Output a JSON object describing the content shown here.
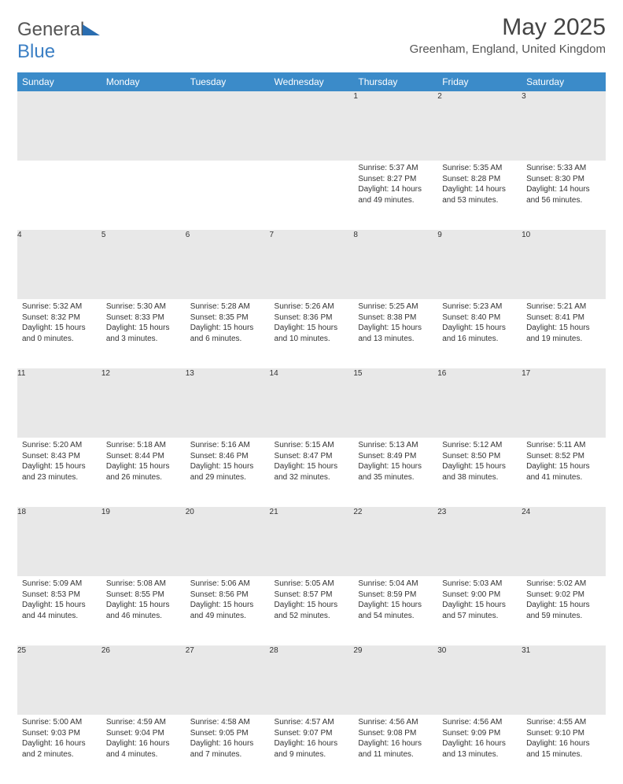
{
  "logo": {
    "word1": "General",
    "word2": "Blue"
  },
  "title": "May 2025",
  "location": "Greenham, England, United Kingdom",
  "colors": {
    "headerBg": "#3b8bc9",
    "rowSep": "#2a6db0",
    "dayBg": "#e8e8e8"
  },
  "weekdays": [
    "Sunday",
    "Monday",
    "Tuesday",
    "Wednesday",
    "Thursday",
    "Friday",
    "Saturday"
  ],
  "weeks": [
    [
      null,
      null,
      null,
      null,
      {
        "n": "1",
        "sr": "Sunrise: 5:37 AM",
        "ss": "Sunset: 8:27 PM",
        "dl": "Daylight: 14 hours and 49 minutes."
      },
      {
        "n": "2",
        "sr": "Sunrise: 5:35 AM",
        "ss": "Sunset: 8:28 PM",
        "dl": "Daylight: 14 hours and 53 minutes."
      },
      {
        "n": "3",
        "sr": "Sunrise: 5:33 AM",
        "ss": "Sunset: 8:30 PM",
        "dl": "Daylight: 14 hours and 56 minutes."
      }
    ],
    [
      {
        "n": "4",
        "sr": "Sunrise: 5:32 AM",
        "ss": "Sunset: 8:32 PM",
        "dl": "Daylight: 15 hours and 0 minutes."
      },
      {
        "n": "5",
        "sr": "Sunrise: 5:30 AM",
        "ss": "Sunset: 8:33 PM",
        "dl": "Daylight: 15 hours and 3 minutes."
      },
      {
        "n": "6",
        "sr": "Sunrise: 5:28 AM",
        "ss": "Sunset: 8:35 PM",
        "dl": "Daylight: 15 hours and 6 minutes."
      },
      {
        "n": "7",
        "sr": "Sunrise: 5:26 AM",
        "ss": "Sunset: 8:36 PM",
        "dl": "Daylight: 15 hours and 10 minutes."
      },
      {
        "n": "8",
        "sr": "Sunrise: 5:25 AM",
        "ss": "Sunset: 8:38 PM",
        "dl": "Daylight: 15 hours and 13 minutes."
      },
      {
        "n": "9",
        "sr": "Sunrise: 5:23 AM",
        "ss": "Sunset: 8:40 PM",
        "dl": "Daylight: 15 hours and 16 minutes."
      },
      {
        "n": "10",
        "sr": "Sunrise: 5:21 AM",
        "ss": "Sunset: 8:41 PM",
        "dl": "Daylight: 15 hours and 19 minutes."
      }
    ],
    [
      {
        "n": "11",
        "sr": "Sunrise: 5:20 AM",
        "ss": "Sunset: 8:43 PM",
        "dl": "Daylight: 15 hours and 23 minutes."
      },
      {
        "n": "12",
        "sr": "Sunrise: 5:18 AM",
        "ss": "Sunset: 8:44 PM",
        "dl": "Daylight: 15 hours and 26 minutes."
      },
      {
        "n": "13",
        "sr": "Sunrise: 5:16 AM",
        "ss": "Sunset: 8:46 PM",
        "dl": "Daylight: 15 hours and 29 minutes."
      },
      {
        "n": "14",
        "sr": "Sunrise: 5:15 AM",
        "ss": "Sunset: 8:47 PM",
        "dl": "Daylight: 15 hours and 32 minutes."
      },
      {
        "n": "15",
        "sr": "Sunrise: 5:13 AM",
        "ss": "Sunset: 8:49 PM",
        "dl": "Daylight: 15 hours and 35 minutes."
      },
      {
        "n": "16",
        "sr": "Sunrise: 5:12 AM",
        "ss": "Sunset: 8:50 PM",
        "dl": "Daylight: 15 hours and 38 minutes."
      },
      {
        "n": "17",
        "sr": "Sunrise: 5:11 AM",
        "ss": "Sunset: 8:52 PM",
        "dl": "Daylight: 15 hours and 41 minutes."
      }
    ],
    [
      {
        "n": "18",
        "sr": "Sunrise: 5:09 AM",
        "ss": "Sunset: 8:53 PM",
        "dl": "Daylight: 15 hours and 44 minutes."
      },
      {
        "n": "19",
        "sr": "Sunrise: 5:08 AM",
        "ss": "Sunset: 8:55 PM",
        "dl": "Daylight: 15 hours and 46 minutes."
      },
      {
        "n": "20",
        "sr": "Sunrise: 5:06 AM",
        "ss": "Sunset: 8:56 PM",
        "dl": "Daylight: 15 hours and 49 minutes."
      },
      {
        "n": "21",
        "sr": "Sunrise: 5:05 AM",
        "ss": "Sunset: 8:57 PM",
        "dl": "Daylight: 15 hours and 52 minutes."
      },
      {
        "n": "22",
        "sr": "Sunrise: 5:04 AM",
        "ss": "Sunset: 8:59 PM",
        "dl": "Daylight: 15 hours and 54 minutes."
      },
      {
        "n": "23",
        "sr": "Sunrise: 5:03 AM",
        "ss": "Sunset: 9:00 PM",
        "dl": "Daylight: 15 hours and 57 minutes."
      },
      {
        "n": "24",
        "sr": "Sunrise: 5:02 AM",
        "ss": "Sunset: 9:02 PM",
        "dl": "Daylight: 15 hours and 59 minutes."
      }
    ],
    [
      {
        "n": "25",
        "sr": "Sunrise: 5:00 AM",
        "ss": "Sunset: 9:03 PM",
        "dl": "Daylight: 16 hours and 2 minutes."
      },
      {
        "n": "26",
        "sr": "Sunrise: 4:59 AM",
        "ss": "Sunset: 9:04 PM",
        "dl": "Daylight: 16 hours and 4 minutes."
      },
      {
        "n": "27",
        "sr": "Sunrise: 4:58 AM",
        "ss": "Sunset: 9:05 PM",
        "dl": "Daylight: 16 hours and 7 minutes."
      },
      {
        "n": "28",
        "sr": "Sunrise: 4:57 AM",
        "ss": "Sunset: 9:07 PM",
        "dl": "Daylight: 16 hours and 9 minutes."
      },
      {
        "n": "29",
        "sr": "Sunrise: 4:56 AM",
        "ss": "Sunset: 9:08 PM",
        "dl": "Daylight: 16 hours and 11 minutes."
      },
      {
        "n": "30",
        "sr": "Sunrise: 4:56 AM",
        "ss": "Sunset: 9:09 PM",
        "dl": "Daylight: 16 hours and 13 minutes."
      },
      {
        "n": "31",
        "sr": "Sunrise: 4:55 AM",
        "ss": "Sunset: 9:10 PM",
        "dl": "Daylight: 16 hours and 15 minutes."
      }
    ]
  ]
}
